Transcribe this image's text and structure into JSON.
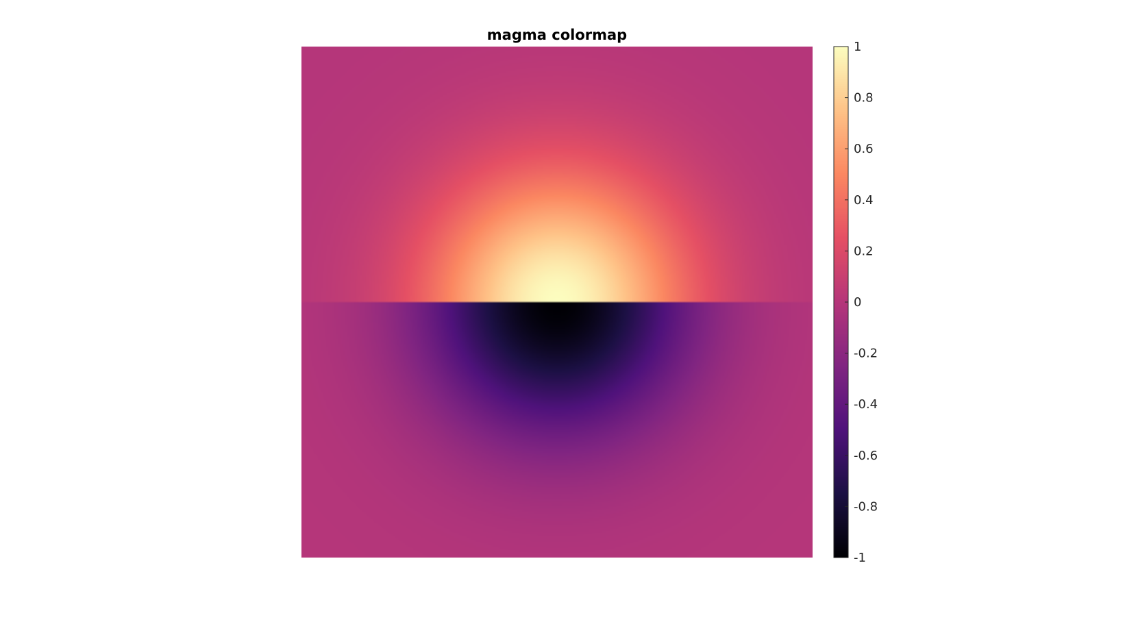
{
  "chart_data": {
    "type": "heatmap",
    "title": "magma colormap",
    "xlabel": "",
    "ylabel": "",
    "colormap": "magma",
    "grid": false,
    "axes_visible": false,
    "field": {
      "description_upper": "positive radial peak (value 1 at center of top edge of lower half)",
      "description_lower": "negative radial trough (value -1 at center of top edge of lower half)"
    },
    "colorbar": {
      "location": "right",
      "range": [
        -1,
        1
      ],
      "ticks": [
        {
          "value": 1,
          "label": "1"
        },
        {
          "value": 0.8,
          "label": "0.8"
        },
        {
          "value": 0.6,
          "label": "0.6"
        },
        {
          "value": 0.4,
          "label": "0.4"
        },
        {
          "value": 0.2,
          "label": "0.2"
        },
        {
          "value": 0,
          "label": "0"
        },
        {
          "value": -0.2,
          "label": "-0.2"
        },
        {
          "value": -0.4,
          "label": "-0.4"
        },
        {
          "value": -0.6,
          "label": "-0.6"
        },
        {
          "value": -0.8,
          "label": "-0.8"
        },
        {
          "value": -1,
          "label": "-1"
        }
      ]
    },
    "colors": {
      "c0": "#000004",
      "c1": "#1c1044",
      "c2": "#4f127b",
      "c3": "#812581",
      "c4": "#b5367a",
      "c5": "#e55064",
      "c6": "#fb8761",
      "c7": "#fec287",
      "c8": "#fcfdbf"
    }
  }
}
